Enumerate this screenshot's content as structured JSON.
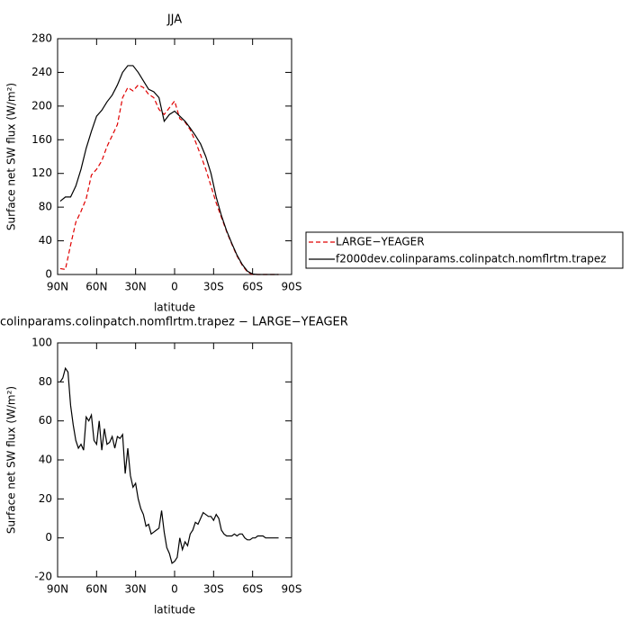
{
  "chart_data": [
    {
      "type": "line",
      "title": "JJA",
      "x_label": "latitude",
      "y_label": "Surface net SW flux (W/m²)",
      "x": [
        88,
        84,
        80,
        76,
        72,
        68,
        64,
        60,
        56,
        52,
        48,
        44,
        40,
        36,
        32,
        28,
        24,
        20,
        16,
        12,
        8,
        4,
        0,
        -4,
        -8,
        -12,
        -16,
        -20,
        -24,
        -28,
        -32,
        -36,
        -40,
        -44,
        -48,
        -52,
        -56,
        -60,
        -64,
        -68,
        -72,
        -76,
        -80
      ],
      "series": [
        {
          "name": "LARGE−YEAGER",
          "color": "#e00000",
          "line_style": "dashed",
          "values": [
            7,
            6,
            35,
            62,
            75,
            90,
            118,
            125,
            135,
            152,
            165,
            178,
            210,
            222,
            218,
            225,
            222,
            214,
            210,
            196,
            190,
            198,
            206,
            185,
            181,
            172,
            158,
            142,
            125,
            105,
            85,
            68,
            51,
            36,
            22,
            11,
            3,
            0,
            0,
            0,
            0,
            0,
            0
          ]
        },
        {
          "name": "f2000dev.colinparams.colinpatch.nomflrtm.trapez",
          "color": "#000000",
          "line_style": "solid",
          "values": [
            87,
            92,
            92,
            105,
            125,
            150,
            170,
            188,
            195,
            205,
            213,
            225,
            240,
            248,
            248,
            240,
            230,
            220,
            217,
            210,
            182,
            190,
            194,
            188,
            182,
            174,
            165,
            155,
            140,
            120,
            92,
            70,
            52,
            37,
            23,
            12,
            4,
            0.5,
            0,
            0,
            0,
            0,
            0
          ]
        }
      ],
      "xlim": [
        90,
        -90
      ],
      "xticks": [
        {
          "value": 90,
          "label": "90N"
        },
        {
          "value": 60,
          "label": "60N"
        },
        {
          "value": 30,
          "label": "30N"
        },
        0,
        {
          "value": -30,
          "label": "30S"
        },
        {
          "value": -60,
          "label": "60S"
        },
        {
          "value": -90,
          "label": "90S"
        }
      ],
      "ylim": [
        0,
        280
      ],
      "yticks": [
        0,
        40,
        80,
        120,
        160,
        200,
        240,
        280
      ],
      "legend": "right"
    },
    {
      "type": "line",
      "title": "colinparams.colinpatch.nomflrtm.trapez − LARGE−YEAGER",
      "x_label": "latitude",
      "y_label": "Surface net SW flux (W/m²)",
      "x": [
        88,
        86,
        84,
        82,
        80,
        78,
        76,
        74,
        72,
        70,
        68,
        66,
        64,
        62,
        60,
        58,
        56,
        54,
        52,
        50,
        48,
        46,
        44,
        42,
        40,
        38,
        36,
        34,
        32,
        30,
        28,
        26,
        24,
        22,
        20,
        18,
        16,
        14,
        12,
        10,
        8,
        6,
        4,
        2,
        0,
        -2,
        -4,
        -6,
        -8,
        -10,
        -12,
        -14,
        -16,
        -18,
        -20,
        -22,
        -24,
        -26,
        -28,
        -30,
        -32,
        -34,
        -36,
        -38,
        -40,
        -42,
        -44,
        -46,
        -48,
        -50,
        -52,
        -54,
        -56,
        -58,
        -60,
        -62,
        -64,
        -66,
        -68,
        -70,
        -72,
        -74,
        -76,
        -78,
        -80
      ],
      "values": [
        80,
        82,
        87,
        85,
        68,
        58,
        50,
        46,
        48,
        45,
        62,
        60,
        63,
        50,
        48,
        60,
        45,
        56,
        48,
        49,
        52,
        46,
        52,
        51,
        53,
        33,
        46,
        32,
        26,
        28,
        20,
        15,
        12,
        6,
        7,
        2,
        3,
        4,
        5,
        14,
        3,
        -5,
        -8,
        -13,
        -12,
        -10,
        0,
        -6,
        -2,
        -4,
        2,
        4,
        8,
        7,
        10,
        13,
        12,
        11,
        11,
        9,
        12,
        10,
        4,
        2,
        1,
        1,
        1,
        2,
        1,
        2,
        2,
        0,
        -1,
        -1,
        0,
        0,
        1,
        1,
        1,
        0,
        0,
        0,
        0,
        0,
        0
      ],
      "color": "#000000",
      "xlim": [
        90,
        -90
      ],
      "xticks": [
        {
          "value": 90,
          "label": "90N"
        },
        {
          "value": 60,
          "label": "60N"
        },
        {
          "value": 30,
          "label": "30N"
        },
        0,
        {
          "value": -30,
          "label": "30S"
        },
        {
          "value": -60,
          "label": "60S"
        },
        {
          "value": -90,
          "label": "90S"
        }
      ],
      "ylim": [
        -20,
        100
      ],
      "yticks": [
        -20,
        0,
        20,
        40,
        60,
        80,
        100
      ]
    }
  ]
}
